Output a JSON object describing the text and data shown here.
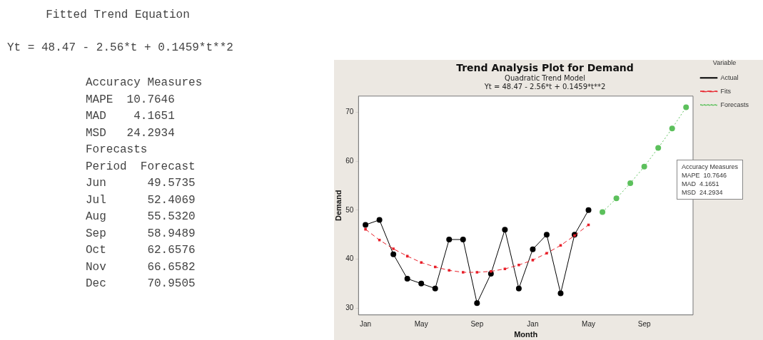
{
  "chart_data": [
    {
      "type": "other",
      "title": "Fitted Trend Equation",
      "annotations": [
        "Yt = 48.47 - 2.56*t + 0.1459*t**2",
        "Accuracy Measures",
        "MAPE  10.7646",
        "MAD    4.1651",
        "MSD   24.2934",
        "Forecasts",
        "Period  Forecast",
        "Jun      49.5735",
        "Jul      52.4069",
        "Aug      55.5320",
        "Sep      58.9489",
        "Oct      62.6576",
        "Nov      66.6582",
        "Dec      70.9505"
      ]
    },
    {
      "type": "line",
      "title": "Trend Analysis Plot for Demand",
      "subtitle": "Quadratic Trend Model\nYt = 48.47 - 2.56*t + 0.1459*t**2",
      "xlabel": "Month",
      "ylabel": "Demand",
      "legend_title": "Variable",
      "legend": "right",
      "categories": [
        "Jan",
        null,
        null,
        null,
        "May",
        null,
        null,
        null,
        "Sep",
        null,
        null,
        null,
        "Jan",
        null,
        null,
        null,
        "May",
        null,
        null,
        null,
        "Sep",
        null,
        null,
        null
      ],
      "ylim": [
        28.6,
        73.3
      ],
      "yticks": [
        30,
        40,
        50,
        60,
        70
      ],
      "grid": false,
      "annotations": [
        "Accuracy Measures",
        "MAPE  10.7646",
        "MAD  4.1651",
        "MSD  24.2934"
      ],
      "series": [
        {
          "name": "Actual",
          "color": "#000000",
          "marker": "circle",
          "line_style": "solid",
          "values": [
            47,
            48,
            41,
            36,
            35,
            34,
            44,
            44,
            31,
            37,
            46,
            34,
            42,
            45,
            33,
            45,
            50,
            null,
            null,
            null,
            null,
            null,
            null,
            null
          ]
        },
        {
          "name": "Fits",
          "color": "#e8202a",
          "marker": "square",
          "line_style": "dashed",
          "values": [
            46.1,
            43.9,
            42.1,
            40.6,
            39.3,
            38.4,
            37.7,
            37.3,
            37.3,
            37.5,
            38.0,
            38.8,
            39.8,
            41.2,
            42.8,
            44.8,
            47.0,
            null,
            null,
            null,
            null,
            null,
            null,
            null
          ]
        },
        {
          "name": "Forecasts",
          "color": "#5cc05c",
          "marker": "circle",
          "line_style": "dotted",
          "values": [
            null,
            null,
            null,
            null,
            null,
            null,
            null,
            null,
            null,
            null,
            null,
            null,
            null,
            null,
            null,
            null,
            null,
            49.6,
            52.4,
            55.5,
            58.9,
            62.7,
            66.7,
            71.0
          ]
        }
      ]
    }
  ]
}
